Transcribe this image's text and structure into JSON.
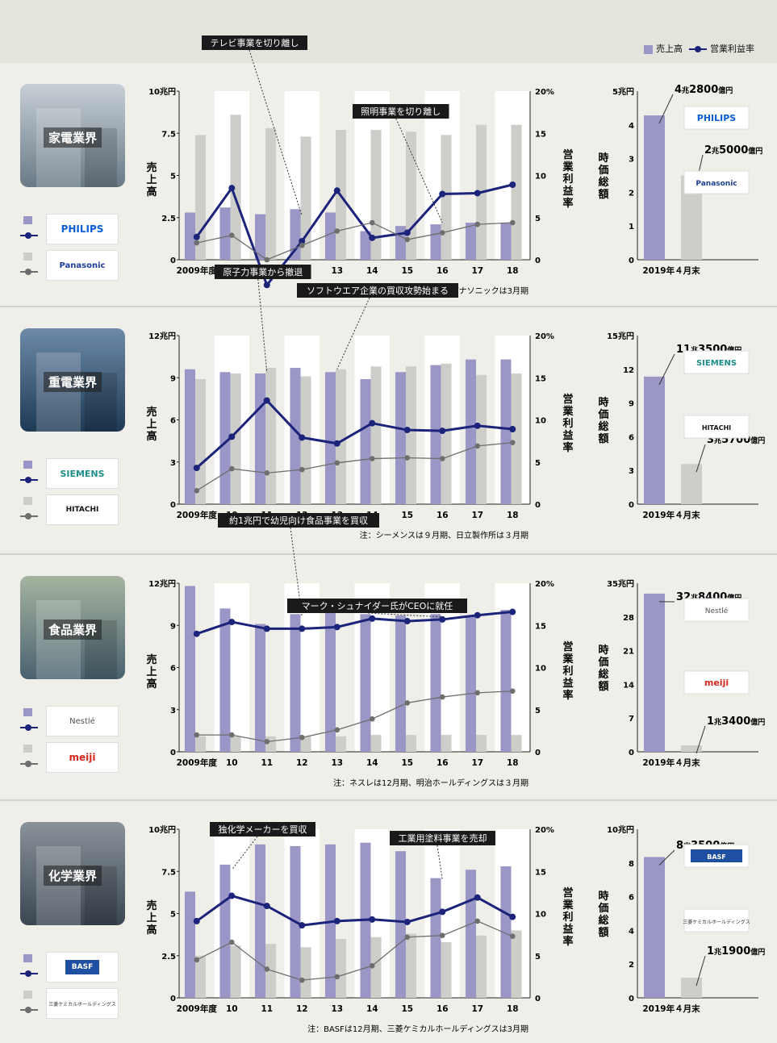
{
  "legend": {
    "sales": "売上高",
    "margin": "営業利益率"
  },
  "colors": {
    "sales_a": "#9a96c6",
    "sales_b": "#cdcdc9",
    "margin_a": "#1b237a",
    "margin_b": "#6e6e6e"
  },
  "chart_data": [
    {
      "type": "bar+line",
      "industry": "家電業界",
      "categories": [
        "2009年度",
        "10",
        "11",
        "12",
        "13",
        "14",
        "15",
        "16",
        "17",
        "18"
      ],
      "ylabel": "売上高",
      "y2label": "営業利益率",
      "ylim": [
        0,
        10
      ],
      "y2lim": [
        0,
        20
      ],
      "yticks": [
        "0",
        "2.5",
        "5",
        "7.5",
        "10兆円"
      ],
      "y2ticks": [
        "0",
        "5",
        "10",
        "15",
        "20%"
      ],
      "series": [
        {
          "name": "PHILIPS",
          "kind": "bar",
          "values": [
            2.8,
            3.1,
            2.7,
            3.0,
            2.8,
            1.7,
            2.0,
            2.1,
            2.2,
            2.2
          ]
        },
        {
          "name": "Panasonic",
          "kind": "bar",
          "values": [
            7.4,
            8.6,
            7.8,
            7.3,
            7.7,
            7.7,
            7.6,
            7.4,
            8.0,
            8.0
          ]
        },
        {
          "name": "PHILIPS",
          "kind": "line",
          "values": [
            2.7,
            8.5,
            -3.0,
            2.2,
            8.2,
            2.6,
            3.2,
            7.8,
            7.9,
            8.9
          ]
        },
        {
          "name": "Panasonic",
          "kind": "line",
          "values": [
            2.0,
            2.9,
            0.0,
            1.7,
            3.4,
            4.4,
            2.4,
            3.2,
            4.2,
            4.4
          ]
        }
      ],
      "annotations": [
        "テレビ事業を切り離し",
        "照明事業を切り離し"
      ],
      "note": "注：フィリップスは12月期、パナソニックは3月期",
      "market_cap": {
        "ylabel": "時価総額",
        "ylim": [
          0,
          5
        ],
        "yticks": [
          "0",
          "1",
          "2",
          "3",
          "4",
          "5兆円"
        ],
        "xlabel": "2019年４月末",
        "values": [
          4.28,
          2.5
        ],
        "labels": [
          [
            "4",
            "兆",
            "2800",
            "億円"
          ],
          [
            "2",
            "兆",
            "5000",
            "億円"
          ]
        ]
      }
    },
    {
      "type": "bar+line",
      "industry": "重電業界",
      "categories": [
        "2009年度",
        "10",
        "11",
        "12",
        "13",
        "14",
        "15",
        "16",
        "17",
        "18"
      ],
      "ylabel": "売上高",
      "y2label": "営業利益率",
      "ylim": [
        0,
        12
      ],
      "y2lim": [
        0,
        20
      ],
      "yticks": [
        "0",
        "3",
        "6",
        "9",
        "12兆円"
      ],
      "y2ticks": [
        "0",
        "5",
        "10",
        "15",
        "20%"
      ],
      "series": [
        {
          "name": "SIEMENS",
          "kind": "bar",
          "values": [
            9.6,
            9.4,
            9.3,
            9.7,
            9.4,
            8.9,
            9.4,
            9.9,
            10.3,
            10.3
          ]
        },
        {
          "name": "HITACHI",
          "kind": "bar",
          "values": [
            8.9,
            9.3,
            9.7,
            9.1,
            9.6,
            9.8,
            9.8,
            10.0,
            9.2,
            9.3
          ]
        },
        {
          "name": "SIEMENS",
          "kind": "line",
          "values": [
            4.3,
            8.0,
            12.3,
            7.9,
            7.2,
            9.6,
            8.8,
            8.7,
            9.3,
            8.9
          ]
        },
        {
          "name": "HITACHI",
          "kind": "line",
          "values": [
            1.6,
            4.2,
            3.7,
            4.1,
            4.9,
            5.4,
            5.5,
            5.4,
            6.9,
            7.3
          ]
        }
      ],
      "annotations": [
        "原子力事業から撤退",
        "ソフトウエア企業の買収攻勢始まる"
      ],
      "note": "注：シーメンスは９月期、日立製作所は３月期",
      "market_cap": {
        "ylabel": "時価総額",
        "ylim": [
          0,
          15
        ],
        "yticks": [
          "0",
          "3",
          "6",
          "9",
          "12",
          "15兆円"
        ],
        "xlabel": "2019年４月末",
        "values": [
          11.35,
          3.57
        ],
        "labels": [
          [
            "11",
            "兆",
            "3500",
            "億円"
          ],
          [
            "3",
            "兆",
            "5700",
            "億円"
          ]
        ]
      }
    },
    {
      "type": "bar+line",
      "industry": "食品業界",
      "categories": [
        "2009年度",
        "10",
        "11",
        "12",
        "13",
        "14",
        "15",
        "16",
        "17",
        "18"
      ],
      "ylabel": "売上高",
      "y2label": "営業利益率",
      "ylim": [
        0,
        12
      ],
      "y2lim": [
        0,
        20
      ],
      "yticks": [
        "0",
        "3",
        "6",
        "9",
        "12兆円"
      ],
      "y2ticks": [
        "0",
        "5",
        "10",
        "15",
        "20%"
      ],
      "series": [
        {
          "name": "Nestlé",
          "kind": "bar",
          "values": [
            11.8,
            10.2,
            9.1,
            9.8,
            10.1,
            9.8,
            9.7,
            9.8,
            9.7,
            10.1
          ]
        },
        {
          "name": "meiji",
          "kind": "bar",
          "values": [
            1.1,
            1.1,
            1.1,
            1.1,
            1.1,
            1.2,
            1.2,
            1.2,
            1.2,
            1.2
          ]
        },
        {
          "name": "Nestlé",
          "kind": "line",
          "values": [
            14.0,
            15.4,
            14.6,
            14.6,
            14.8,
            15.8,
            15.5,
            15.7,
            16.2,
            16.6
          ]
        },
        {
          "name": "meiji",
          "kind": "line",
          "values": [
            2.0,
            2.0,
            1.2,
            1.7,
            2.6,
            3.9,
            5.8,
            6.5,
            7.0,
            7.2
          ]
        }
      ],
      "annotations": [
        "約1兆円で幼児向け食品事業を買収",
        "マーク・シュナイダー氏がCEOに就任"
      ],
      "note": "注：ネスレは12月期、明治ホールディングスは３月期",
      "market_cap": {
        "ylabel": "時価総額",
        "ylim": [
          0,
          35
        ],
        "yticks": [
          "0",
          "7",
          "14",
          "21",
          "28",
          "35兆円"
        ],
        "xlabel": "2019年４月末",
        "values": [
          32.84,
          1.34
        ],
        "labels": [
          [
            "32",
            "兆",
            "8400",
            "億円"
          ],
          [
            "1",
            "兆",
            "3400",
            "億円"
          ]
        ]
      }
    },
    {
      "type": "bar+line",
      "industry": "化学業界",
      "categories": [
        "2009年度",
        "10",
        "11",
        "12",
        "13",
        "14",
        "15",
        "16",
        "17",
        "18"
      ],
      "ylabel": "売上高",
      "y2label": "営業利益率",
      "ylim": [
        0,
        10
      ],
      "y2lim": [
        0,
        20
      ],
      "yticks": [
        "0",
        "2.5",
        "5",
        "7.5",
        "10兆円"
      ],
      "y2ticks": [
        "0",
        "5",
        "10",
        "15",
        "20%"
      ],
      "series": [
        {
          "name": "BASF",
          "kind": "bar",
          "values": [
            6.3,
            7.9,
            9.1,
            9.0,
            9.1,
            9.2,
            8.7,
            7.1,
            7.6,
            7.8
          ]
        },
        {
          "name": "三菱ケミカルホールディングス",
          "kind": "bar",
          "values": [
            2.5,
            3.1,
            3.2,
            3.0,
            3.5,
            3.6,
            3.8,
            3.3,
            3.7,
            4.0
          ]
        },
        {
          "name": "BASF",
          "kind": "line",
          "values": [
            9.1,
            12.1,
            10.9,
            8.6,
            9.1,
            9.3,
            9.0,
            10.2,
            11.9,
            9.6
          ]
        },
        {
          "name": "三菱ケミカルホールディングス",
          "kind": "line",
          "values": [
            4.5,
            6.6,
            3.4,
            2.1,
            2.5,
            3.8,
            7.2,
            7.4,
            9.1,
            7.3
          ]
        }
      ],
      "annotations": [
        "独化学メーカーを買収",
        "工業用塗料事業を売却"
      ],
      "note": "注：BASFは12月期、三菱ケミカルホールディングスは3月期",
      "market_cap": {
        "ylabel": "時価総額",
        "ylim": [
          0,
          10
        ],
        "yticks": [
          "0",
          "2",
          "4",
          "6",
          "8",
          "10兆円"
        ],
        "xlabel": "2019年４月末",
        "values": [
          8.35,
          1.19
        ],
        "labels": [
          [
            "8",
            "兆",
            "3500",
            "億円"
          ],
          [
            "1",
            "兆",
            "1900",
            "億円"
          ]
        ]
      }
    }
  ],
  "logos": [
    [
      "PHILIPS",
      "Panasonic"
    ],
    [
      "SIEMENS",
      "HITACHI"
    ],
    [
      "Nestlé",
      "meiji"
    ],
    [
      "BASF",
      "三菱ケミカルホールディングス"
    ]
  ]
}
